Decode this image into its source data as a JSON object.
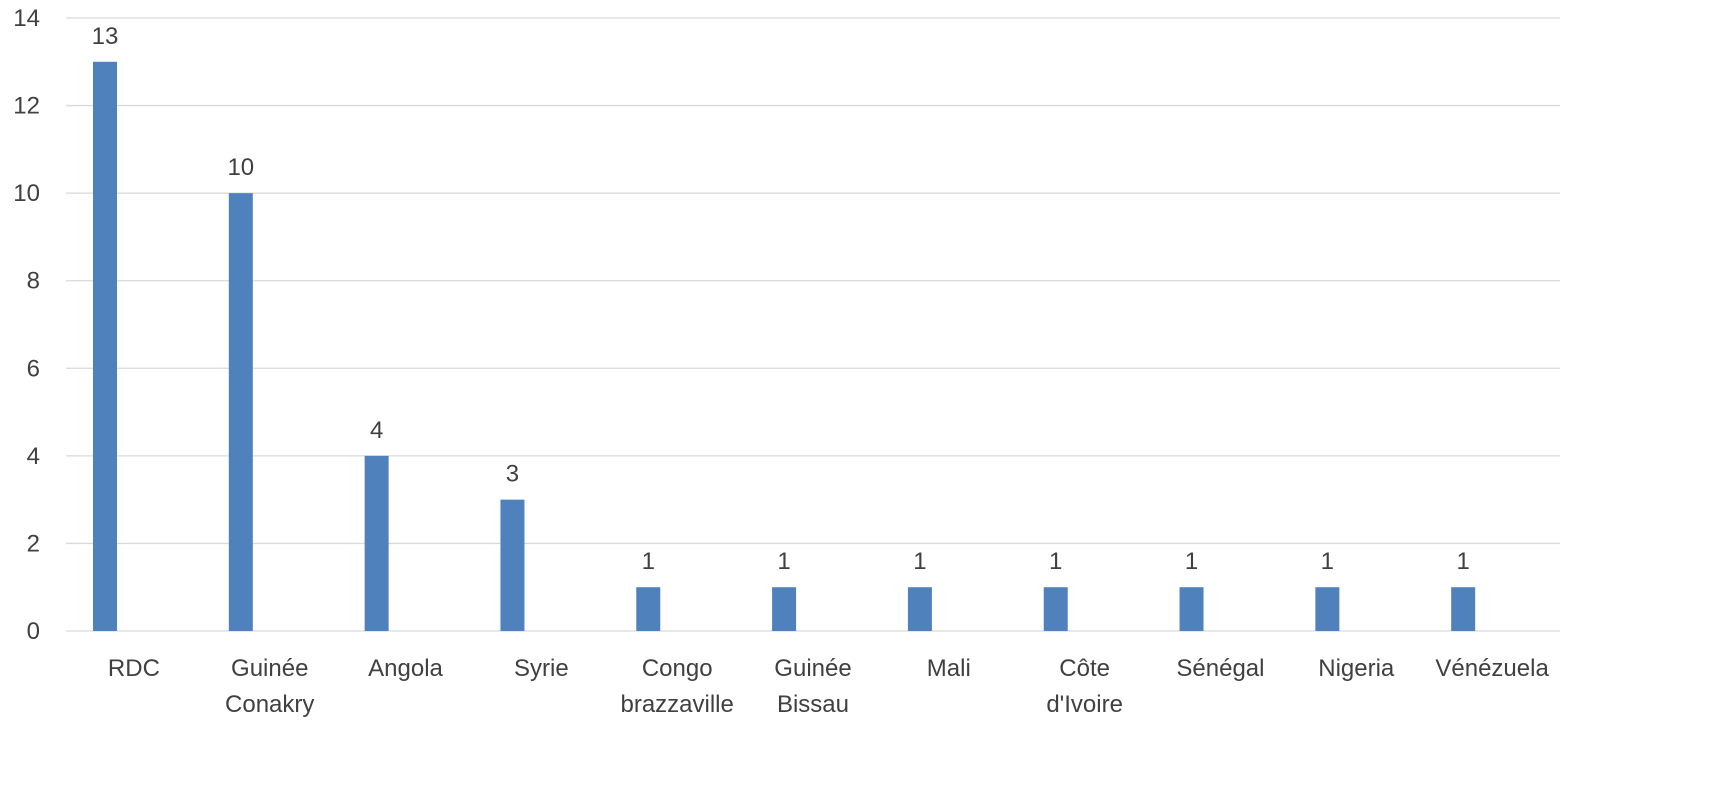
{
  "chart_data": {
    "type": "bar",
    "title": "",
    "xlabel": "",
    "ylabel": "",
    "categories": [
      [
        "RDC"
      ],
      [
        "Guinée",
        "Conakry"
      ],
      [
        "Angola"
      ],
      [
        "Syrie"
      ],
      [
        "Congo",
        "brazzaville"
      ],
      [
        "Guinée",
        "Bissau"
      ],
      [
        "Mali"
      ],
      [
        "Côte",
        "d'Ivoire"
      ],
      [
        "Sénégal"
      ],
      [
        "Nigeria"
      ],
      [
        "Vénézuela"
      ]
    ],
    "values": [
      13,
      10,
      4,
      3,
      1,
      1,
      1,
      1,
      1,
      1,
      1
    ],
    "data_labels": [
      "13",
      "10",
      "4",
      "3",
      "1",
      "1",
      "1",
      "1",
      "1",
      "1",
      "1"
    ],
    "ylim": [
      0,
      14
    ],
    "yticks": [
      0,
      2,
      4,
      6,
      8,
      10,
      12,
      14
    ],
    "grid": true,
    "legend": "none",
    "colors": {
      "bar": "#4f81bd",
      "grid": "#d9d9d9",
      "text": "#404040"
    }
  }
}
